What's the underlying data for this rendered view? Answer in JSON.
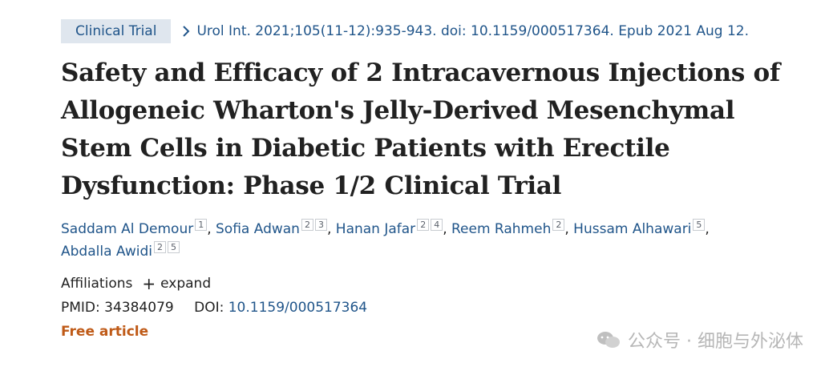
{
  "pub_type": "Clinical Trial",
  "citation": "Urol Int. 2021;105(11-12):935-943. doi: 10.1159/000517364. Epub 2021 Aug 12.",
  "title": "Safety and Efficacy of 2 Intracavernous Injections of Allogeneic Wharton's Jelly-Derived Mesenchymal Stem Cells in Diabetic Patients with Erectile Dysfunction: Phase 1/2 Clinical Trial",
  "authors": [
    {
      "name": "Saddam Al Demour",
      "affs": [
        "1"
      ]
    },
    {
      "name": "Sofia Adwan",
      "affs": [
        "2",
        "3"
      ]
    },
    {
      "name": "Hanan Jafar",
      "affs": [
        "2",
        "4"
      ]
    },
    {
      "name": "Reem Rahmeh",
      "affs": [
        "2"
      ]
    },
    {
      "name": "Hussam Alhawari",
      "affs": [
        "5"
      ]
    },
    {
      "name": "Abdalla Awidi",
      "affs": [
        "2",
        "5"
      ]
    }
  ],
  "affiliations": {
    "label": "Affiliations",
    "expand_label": "expand"
  },
  "ids": {
    "pmid_label": "PMID:",
    "pmid": "34384079",
    "doi_label": "DOI:",
    "doi": "10.1159/000517364"
  },
  "free_article": "Free article",
  "watermark": "公众号 · 细胞与外泌体",
  "icons": {
    "citation_chevron": "chevron-right-icon",
    "expand": "plus-icon",
    "watermark": "wechat-icon"
  },
  "colors": {
    "link": "#20558a",
    "pubtype_bg": "#dfe6ee",
    "free": "#bf5a17"
  }
}
